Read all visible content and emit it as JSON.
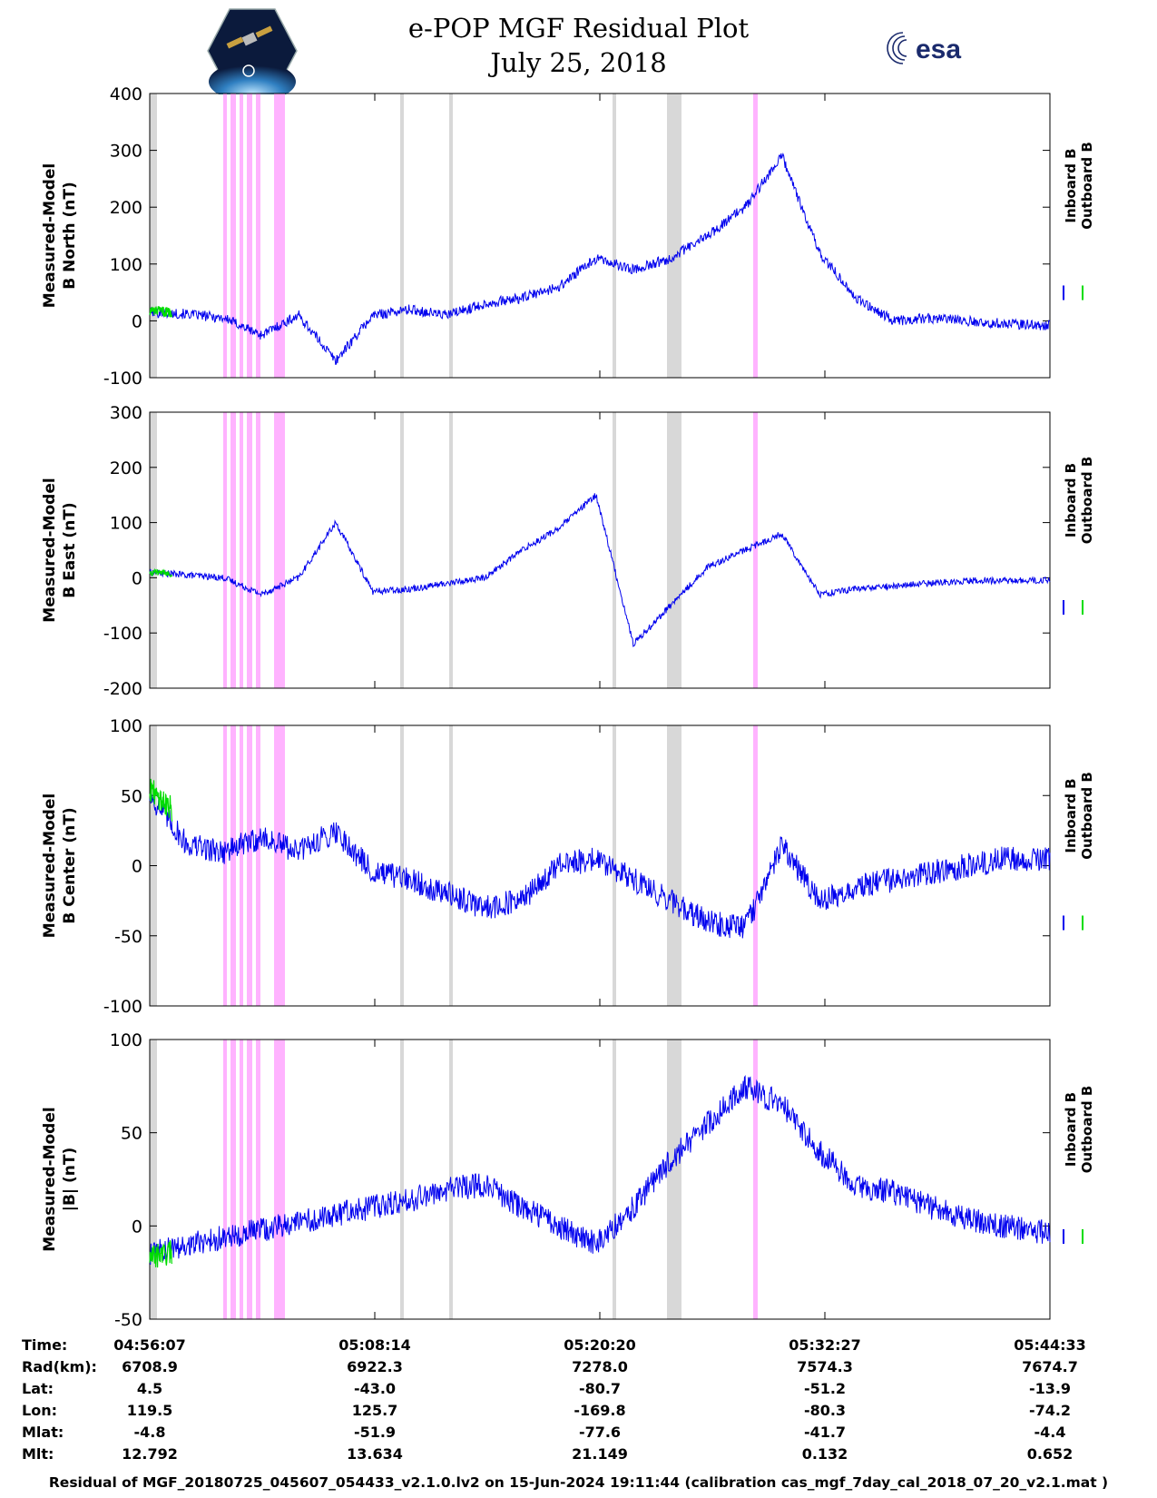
{
  "title_line1": "e-POP MGF Residual Plot",
  "title_line2": "July 25, 2018",
  "logos": {
    "left": "cassiope-logo",
    "right_text": "esa"
  },
  "colors": {
    "inboard": "#0000ee",
    "outboard": "#00dd00",
    "gray_band": "#d8d8d8",
    "pink_band": "#ffb3ff"
  },
  "legend": {
    "inboard": "Inboard B",
    "outboard": "Outboard B"
  },
  "x_ticks": [
    "04:56:07",
    "05:08:14",
    "05:20:20",
    "05:32:27",
    "05:44:33"
  ],
  "chart_data": [
    {
      "type": "line",
      "ylabel_line1": "Measured-Model",
      "ylabel_line2": "B North (nT)",
      "ylim": [
        -100,
        400
      ],
      "yticks": [
        "400",
        "300",
        "200",
        "100",
        "0",
        "-100"
      ],
      "x_minutes": [
        0,
        2,
        4,
        6,
        8,
        10,
        12,
        14,
        16,
        18,
        20,
        22,
        24,
        26,
        28,
        30,
        32,
        34,
        36,
        38,
        40,
        42,
        44,
        46,
        48.4
      ],
      "series": [
        {
          "name": "Inboard B",
          "values": [
            15,
            12,
            5,
            -25,
            10,
            -70,
            10,
            20,
            10,
            30,
            40,
            60,
            110,
            90,
            110,
            150,
            200,
            290,
            120,
            40,
            0,
            5,
            0,
            -5,
            -8
          ]
        },
        {
          "name": "Outboard B",
          "values": [
            18,
            15
          ]
        }
      ]
    },
    {
      "type": "line",
      "ylabel_line1": "Measured-Model",
      "ylabel_line2": "B East (nT)",
      "ylim": [
        -200,
        300
      ],
      "yticks": [
        "300",
        "200",
        "100",
        "0",
        "-100",
        "-200"
      ],
      "x_minutes": [
        0,
        2,
        4,
        6,
        8,
        10,
        12,
        14,
        16,
        18,
        20,
        22,
        24,
        26,
        28,
        30,
        32,
        34,
        36,
        38,
        40,
        42,
        44,
        46,
        48.4
      ],
      "series": [
        {
          "name": "Inboard B",
          "values": [
            10,
            5,
            0,
            -30,
            0,
            100,
            -25,
            -20,
            -10,
            0,
            50,
            90,
            150,
            -120,
            -50,
            20,
            50,
            80,
            -30,
            -20,
            -15,
            -10,
            -5,
            -5,
            -5
          ]
        },
        {
          "name": "Outboard B",
          "values": [
            10,
            8
          ]
        }
      ]
    },
    {
      "type": "line",
      "ylabel_line1": "Measured-Model",
      "ylabel_line2": "B Center (nT)",
      "ylim": [
        -100,
        100
      ],
      "yticks": [
        "100",
        "50",
        "0",
        "-50",
        "-100"
      ],
      "x_minutes": [
        0,
        2,
        4,
        6,
        8,
        10,
        12,
        14,
        16,
        18,
        20,
        22,
        24,
        26,
        28,
        30,
        32,
        34,
        36,
        38,
        40,
        42,
        44,
        46,
        48.4
      ],
      "series": [
        {
          "name": "Inboard B",
          "values": [
            50,
            15,
            10,
            20,
            10,
            25,
            -5,
            -10,
            -20,
            -30,
            -25,
            0,
            5,
            -10,
            -25,
            -40,
            -45,
            15,
            -25,
            -15,
            -10,
            -5,
            0,
            5,
            5
          ]
        },
        {
          "name": "Outboard B",
          "values": [
            55,
            40
          ]
        }
      ]
    },
    {
      "type": "line",
      "ylabel_line1": "Measured-Model",
      "ylabel_line2": "|B| (nT)",
      "ylim": [
        -50,
        100
      ],
      "yticks": [
        "100",
        "50",
        "0",
        "-50"
      ],
      "x_minutes": [
        0,
        2,
        4,
        6,
        8,
        10,
        12,
        14,
        16,
        18,
        20,
        22,
        24,
        26,
        28,
        30,
        32,
        34,
        36,
        38,
        40,
        42,
        44,
        46,
        48.4
      ],
      "series": [
        {
          "name": "Inboard B",
          "values": [
            -15,
            -10,
            -6,
            -2,
            2,
            6,
            10,
            14,
            20,
            22,
            10,
            0,
            -10,
            10,
            35,
            55,
            75,
            65,
            40,
            22,
            18,
            10,
            4,
            0,
            -4
          ]
        },
        {
          "name": "Outboard B",
          "values": [
            -17,
            -14
          ]
        }
      ]
    }
  ],
  "info_rows": [
    {
      "label": "Time:",
      "values": [
        "04:56:07",
        "05:08:14",
        "05:20:20",
        "05:32:27",
        "05:44:33"
      ]
    },
    {
      "label": "Rad(km):",
      "values": [
        "6708.9",
        "6922.3",
        "7278.0",
        "7574.3",
        "7674.7"
      ]
    },
    {
      "label": "Lat:",
      "values": [
        "4.5",
        "-43.0",
        "-80.7",
        "-51.2",
        "-13.9"
      ]
    },
    {
      "label": "Lon:",
      "values": [
        "119.5",
        "125.7",
        "-169.8",
        "-80.3",
        "-74.2"
      ]
    },
    {
      "label": "Mlat:",
      "values": [
        "-4.8",
        "-51.9",
        "-77.6",
        "-41.7",
        "-4.4"
      ]
    },
    {
      "label": "Mlt:",
      "values": [
        "12.792",
        "13.634",
        "21.149",
        "0.132",
        "0.652"
      ]
    }
  ],
  "footer": "Residual of MGF_20180725_045607_054433_v2.1.0.lv2 on 15-Jun-2024 19:11:44 (calibration cas_mgf_7day_cal_2018_07_20_v2.1.mat )"
}
